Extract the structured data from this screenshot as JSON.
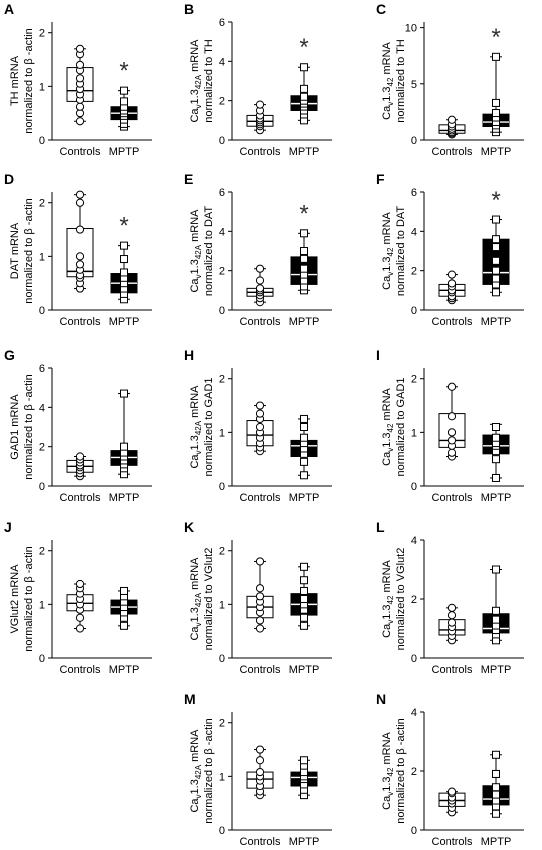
{
  "figure": {
    "group_labels": [
      "Controls",
      "MPTP"
    ],
    "significance_marker": "*"
  },
  "chart_data": [
    {
      "type": "box",
      "panel": "A",
      "ylabel_lines": [
        "TH mRNA",
        "normalized to β -actin"
      ],
      "yticks": [
        0,
        1,
        2
      ],
      "ylim": [
        0,
        2.2
      ],
      "significant": true,
      "groups": [
        {
          "name": "Controls",
          "fill": "white",
          "min": 0.35,
          "q1": 0.72,
          "median": 0.92,
          "q3": 1.35,
          "max": 1.7,
          "points": [
            0.35,
            0.5,
            0.62,
            0.75,
            0.85,
            0.95,
            1.05,
            1.15,
            1.3,
            1.4,
            1.6,
            1.7
          ]
        },
        {
          "name": "MPTP",
          "fill": "black",
          "min": 0.25,
          "q1": 0.38,
          "median": 0.5,
          "q3": 0.62,
          "max": 0.92,
          "points": [
            0.25,
            0.3,
            0.38,
            0.45,
            0.5,
            0.55,
            0.62,
            0.72,
            0.92
          ]
        }
      ]
    },
    {
      "type": "box",
      "panel": "B",
      "ylabel_lines": [
        "Cav1.342A mRNA",
        "normalized to TH"
      ],
      "yticks": [
        0,
        2,
        4,
        6
      ],
      "ylim": [
        0,
        6
      ],
      "significant": true,
      "groups": [
        {
          "name": "Controls",
          "fill": "white",
          "min": 0.5,
          "q1": 0.7,
          "median": 0.95,
          "q3": 1.25,
          "max": 1.8,
          "points": [
            0.5,
            0.7,
            0.8,
            0.9,
            1.0,
            1.1,
            1.25,
            1.5,
            1.8
          ]
        },
        {
          "name": "MPTP",
          "fill": "black",
          "min": 1.0,
          "q1": 1.5,
          "median": 1.85,
          "q3": 2.25,
          "max": 3.7,
          "points": [
            1.0,
            1.3,
            1.5,
            1.7,
            1.85,
            2.0,
            2.2,
            2.6,
            3.7
          ]
        }
      ]
    },
    {
      "type": "box",
      "panel": "C",
      "ylabel_lines": [
        "Cav1.342 mRNA",
        "normalized to TH"
      ],
      "yticks": [
        0,
        5,
        10
      ],
      "ylim": [
        0,
        10.5
      ],
      "significant": true,
      "groups": [
        {
          "name": "Controls",
          "fill": "white",
          "min": 0.5,
          "q1": 0.6,
          "median": 0.85,
          "q3": 1.35,
          "max": 1.8,
          "points": [
            0.5,
            0.6,
            0.7,
            0.85,
            1.0,
            1.2,
            1.4,
            1.8
          ]
        },
        {
          "name": "MPTP",
          "fill": "black",
          "min": 0.7,
          "q1": 1.2,
          "median": 1.6,
          "q3": 2.3,
          "max": 7.4,
          "points": [
            0.7,
            1.0,
            1.3,
            1.6,
            2.0,
            2.4,
            3.3,
            7.4
          ]
        }
      ]
    },
    {
      "type": "box",
      "panel": "D",
      "ylabel_lines": [
        "DAT mRNA",
        "normalized to β -actin"
      ],
      "yticks": [
        0,
        1,
        2
      ],
      "ylim": [
        0,
        2.2
      ],
      "significant": true,
      "groups": [
        {
          "name": "Controls",
          "fill": "white",
          "min": 0.4,
          "q1": 0.62,
          "median": 0.72,
          "q3": 1.52,
          "max": 2.15,
          "points": [
            0.4,
            0.5,
            0.6,
            0.65,
            0.75,
            0.85,
            1.0,
            1.5,
            2.0,
            2.15
          ]
        },
        {
          "name": "MPTP",
          "fill": "black",
          "min": 0.2,
          "q1": 0.32,
          "median": 0.5,
          "q3": 0.68,
          "max": 1.2,
          "points": [
            0.2,
            0.3,
            0.4,
            0.5,
            0.6,
            0.7,
            0.95,
            1.2
          ]
        }
      ]
    },
    {
      "type": "box",
      "panel": "E",
      "ylabel_lines": [
        "Cav1.342A mRNA",
        "normalized to DAT"
      ],
      "yticks": [
        0,
        2,
        4,
        6
      ],
      "ylim": [
        0,
        6
      ],
      "significant": true,
      "groups": [
        {
          "name": "Controls",
          "fill": "white",
          "min": 0.4,
          "q1": 0.7,
          "median": 0.9,
          "q3": 1.1,
          "max": 2.1,
          "points": [
            0.4,
            0.6,
            0.75,
            0.9,
            1.0,
            1.1,
            1.5,
            2.1
          ]
        },
        {
          "name": "MPTP",
          "fill": "black",
          "min": 1.0,
          "q1": 1.3,
          "median": 1.8,
          "q3": 2.7,
          "max": 3.9,
          "points": [
            1.0,
            1.2,
            1.5,
            1.8,
            2.1,
            2.6,
            3.0,
            3.9
          ]
        }
      ]
    },
    {
      "type": "box",
      "panel": "F",
      "ylabel_lines": [
        "Cav1.342 mRNA",
        "normalized to DAT"
      ],
      "yticks": [
        0,
        2,
        4,
        6
      ],
      "ylim": [
        0,
        6
      ],
      "significant": true,
      "groups": [
        {
          "name": "Controls",
          "fill": "white",
          "min": 0.5,
          "q1": 0.7,
          "median": 1.0,
          "q3": 1.3,
          "max": 1.8,
          "points": [
            0.5,
            0.6,
            0.7,
            0.9,
            1.0,
            1.2,
            1.35,
            1.8
          ]
        },
        {
          "name": "MPTP",
          "fill": "black",
          "min": 0.9,
          "q1": 1.3,
          "median": 1.9,
          "q3": 3.6,
          "max": 4.6,
          "points": [
            0.9,
            1.3,
            1.6,
            2.0,
            2.5,
            3.2,
            3.6,
            4.6
          ]
        }
      ]
    },
    {
      "type": "box",
      "panel": "G",
      "ylabel_lines": [
        "GAD1 mRNA",
        "normalized to β -actin"
      ],
      "yticks": [
        0,
        2,
        4,
        6
      ],
      "ylim": [
        0,
        6
      ],
      "significant": false,
      "groups": [
        {
          "name": "Controls",
          "fill": "white",
          "min": 0.5,
          "q1": 0.7,
          "median": 1.0,
          "q3": 1.3,
          "max": 1.5,
          "points": [
            0.5,
            0.65,
            0.8,
            0.95,
            1.05,
            1.2,
            1.35,
            1.5
          ]
        },
        {
          "name": "MPTP",
          "fill": "black",
          "min": 0.6,
          "q1": 1.05,
          "median": 1.45,
          "q3": 1.8,
          "max": 4.7,
          "points": [
            0.6,
            0.9,
            1.1,
            1.3,
            1.5,
            1.7,
            2.0,
            4.7
          ]
        }
      ]
    },
    {
      "type": "box",
      "panel": "H",
      "ylabel_lines": [
        "Cav1.342A mRNA",
        "normalized to GAD1"
      ],
      "yticks": [
        0,
        1,
        2
      ],
      "ylim": [
        0,
        2.2
      ],
      "significant": false,
      "groups": [
        {
          "name": "Controls",
          "fill": "white",
          "min": 0.65,
          "q1": 0.75,
          "median": 0.95,
          "q3": 1.22,
          "max": 1.5,
          "points": [
            0.65,
            0.72,
            0.8,
            0.9,
            1.0,
            1.1,
            1.25,
            1.35,
            1.5
          ]
        },
        {
          "name": "MPTP",
          "fill": "black",
          "min": 0.2,
          "q1": 0.55,
          "median": 0.75,
          "q3": 0.85,
          "max": 1.25,
          "points": [
            0.2,
            0.45,
            0.6,
            0.7,
            0.8,
            0.9,
            1.1,
            1.25
          ]
        }
      ]
    },
    {
      "type": "box",
      "panel": "I",
      "ylabel_lines": [
        "Cav1.342 mRNA",
        "normalized to GAD1"
      ],
      "yticks": [
        0,
        1,
        2
      ],
      "ylim": [
        0,
        2.2
      ],
      "significant": false,
      "groups": [
        {
          "name": "Controls",
          "fill": "white",
          "min": 0.55,
          "q1": 0.72,
          "median": 0.85,
          "q3": 1.35,
          "max": 1.85,
          "points": [
            0.55,
            0.62,
            0.75,
            0.85,
            1.0,
            1.3,
            1.85
          ]
        },
        {
          "name": "MPTP",
          "fill": "black",
          "min": 0.15,
          "q1": 0.6,
          "median": 0.75,
          "q3": 0.95,
          "max": 1.15,
          "points": [
            0.15,
            0.5,
            0.65,
            0.75,
            0.8,
            0.9,
            1.1
          ]
        }
      ]
    },
    {
      "type": "box",
      "panel": "J",
      "ylabel_lines": [
        "VGlut2 mRNA",
        "normalized to β -actin"
      ],
      "yticks": [
        0,
        1,
        2
      ],
      "ylim": [
        0,
        2.2
      ],
      "significant": false,
      "groups": [
        {
          "name": "Controls",
          "fill": "white",
          "min": 0.55,
          "q1": 0.88,
          "median": 1.02,
          "q3": 1.18,
          "max": 1.38,
          "points": [
            0.55,
            0.75,
            0.9,
            1.0,
            1.1,
            1.2,
            1.3,
            1.38
          ]
        },
        {
          "name": "MPTP",
          "fill": "black",
          "min": 0.6,
          "q1": 0.82,
          "median": 0.95,
          "q3": 1.08,
          "max": 1.25,
          "points": [
            0.6,
            0.75,
            0.85,
            0.95,
            1.05,
            1.15,
            1.25
          ]
        }
      ]
    },
    {
      "type": "box",
      "panel": "K",
      "ylabel_lines": [
        "Cav1.342A mRNA",
        "normalized to VGlut2"
      ],
      "yticks": [
        0,
        1,
        2
      ],
      "ylim": [
        0,
        2.2
      ],
      "significant": false,
      "groups": [
        {
          "name": "Controls",
          "fill": "white",
          "min": 0.55,
          "q1": 0.75,
          "median": 0.95,
          "q3": 1.15,
          "max": 1.8,
          "points": [
            0.55,
            0.7,
            0.85,
            0.95,
            1.05,
            1.15,
            1.3,
            1.8
          ]
        },
        {
          "name": "MPTP",
          "fill": "black",
          "min": 0.6,
          "q1": 0.8,
          "median": 1.0,
          "q3": 1.2,
          "max": 1.7,
          "points": [
            0.6,
            0.75,
            0.9,
            1.0,
            1.1,
            1.25,
            1.45,
            1.7
          ]
        }
      ]
    },
    {
      "type": "box",
      "panel": "L",
      "ylabel_lines": [
        "Cav1.342 mRNA",
        "normalized to VGlut2"
      ],
      "yticks": [
        0,
        2,
        4
      ],
      "ylim": [
        0,
        4
      ],
      "significant": false,
      "groups": [
        {
          "name": "Controls",
          "fill": "white",
          "min": 0.6,
          "q1": 0.78,
          "median": 0.95,
          "q3": 1.3,
          "max": 1.7,
          "points": [
            0.6,
            0.75,
            0.9,
            1.05,
            1.2,
            1.45,
            1.7
          ]
        },
        {
          "name": "MPTP",
          "fill": "black",
          "min": 0.6,
          "q1": 0.85,
          "median": 1.0,
          "q3": 1.5,
          "max": 3.0,
          "points": [
            0.6,
            0.8,
            0.95,
            1.1,
            1.3,
            1.6,
            3.0
          ]
        }
      ]
    },
    {
      "type": "box",
      "panel": "M",
      "ylabel_lines": [
        "Cav1.342A mRNA",
        "normalized to β -actin"
      ],
      "yticks": [
        0,
        1,
        2
      ],
      "ylim": [
        0,
        2.2
      ],
      "significant": false,
      "groups": [
        {
          "name": "Controls",
          "fill": "white",
          "min": 0.65,
          "q1": 0.78,
          "median": 0.95,
          "q3": 1.08,
          "max": 1.5,
          "points": [
            0.65,
            0.72,
            0.82,
            0.92,
            1.0,
            1.08,
            1.3,
            1.5
          ]
        },
        {
          "name": "MPTP",
          "fill": "black",
          "min": 0.65,
          "q1": 0.82,
          "median": 0.98,
          "q3": 1.08,
          "max": 1.3,
          "points": [
            0.65,
            0.75,
            0.85,
            0.95,
            1.0,
            1.08,
            1.2,
            1.3
          ]
        }
      ]
    },
    {
      "type": "box",
      "panel": "N",
      "ylabel_lines": [
        "Cav1.342 mRNA",
        "normalized to β -actin"
      ],
      "yticks": [
        0,
        2,
        4
      ],
      "ylim": [
        0,
        4
      ],
      "significant": false,
      "groups": [
        {
          "name": "Controls",
          "fill": "white",
          "min": 0.6,
          "q1": 0.8,
          "median": 1.0,
          "q3": 1.25,
          "max": 1.3,
          "points": [
            0.6,
            0.75,
            0.9,
            1.0,
            1.1,
            1.25,
            1.3
          ]
        },
        {
          "name": "MPTP",
          "fill": "black",
          "min": 0.55,
          "q1": 0.85,
          "median": 1.05,
          "q3": 1.5,
          "max": 2.55,
          "points": [
            0.55,
            0.8,
            1.0,
            1.2,
            1.45,
            1.9,
            2.55
          ]
        }
      ]
    }
  ]
}
